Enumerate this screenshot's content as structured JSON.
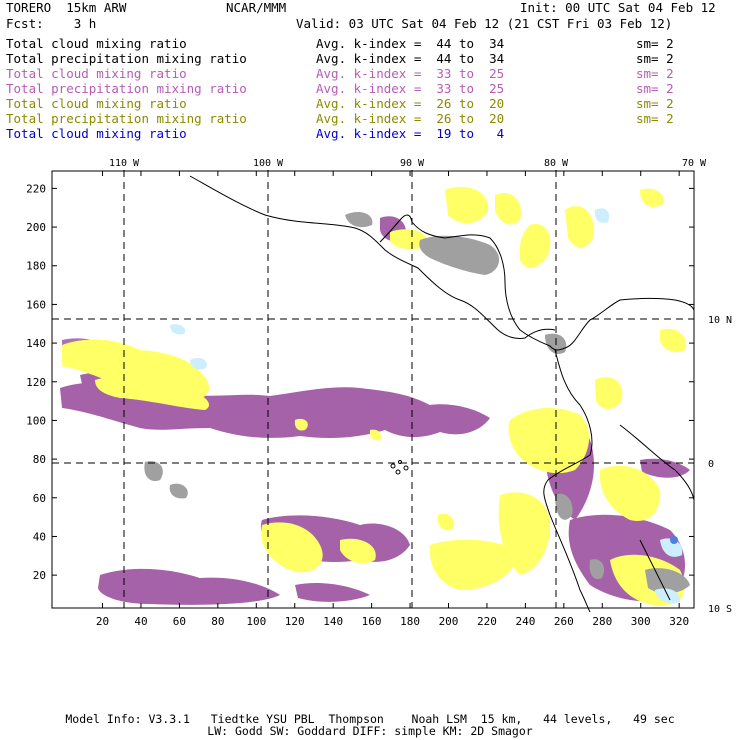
{
  "header": {
    "model": "TORERO  15km ARW",
    "org": "NCAR/MMM",
    "init": "Init: 00 UTC Sat 04 Feb 12",
    "fcst": "Fcst:    3 h",
    "valid": "Valid: 03 UTC Sat 04 Feb 12 (21 CST Fri 03 Feb 12)"
  },
  "legend": [
    {
      "name": "Total cloud mixing ratio",
      "kindex": "Avg. k-index =  44 to  34",
      "sm": "sm= 2",
      "color": "#000000"
    },
    {
      "name": "Total precipitation mixing ratio",
      "kindex": "Avg. k-index =  44 to  34",
      "sm": "sm= 2",
      "color": "#000000"
    },
    {
      "name": "Total cloud mixing ratio",
      "kindex": "Avg. k-index =  33 to  25",
      "sm": "sm= 2",
      "color": "#b55db5"
    },
    {
      "name": "Total precipitation mixing ratio",
      "kindex": "Avg. k-index =  33 to  25",
      "sm": "sm= 2",
      "color": "#b55db5"
    },
    {
      "name": "Total cloud mixing ratio",
      "kindex": "Avg. k-index =  26 to  20",
      "sm": "sm= 2",
      "color": "#8b8b00"
    },
    {
      "name": "Total precipitation mixing ratio",
      "kindex": "Avg. k-index =  26 to  20",
      "sm": "sm= 2",
      "color": "#8b8b00"
    },
    {
      "name": "Total cloud mixing ratio",
      "kindex": "Avg. k-index =  19 to   4",
      "sm": "",
      "color": "#0000d0"
    }
  ],
  "map": {
    "lon_labels": [
      "110 W",
      "100 W",
      "90 W",
      "80 W",
      "70 W"
    ],
    "lat_labels": [
      "10 N",
      "0",
      "10 S"
    ],
    "x_ticks": [
      "20",
      "40",
      "60",
      "80",
      "100",
      "120",
      "140",
      "160",
      "180",
      "200",
      "220",
      "240",
      "260",
      "280",
      "300",
      "320"
    ],
    "y_ticks": [
      "20",
      "40",
      "60",
      "80",
      "100",
      "120",
      "140",
      "160",
      "180",
      "200",
      "220"
    ],
    "colors": {
      "purple": "#a562a8",
      "yellow": "#ffff66",
      "gray": "#a0a0a0",
      "lightblue": "#cceeff",
      "blue": "#4f7fe0"
    }
  },
  "footer": {
    "line1": "Model Info: V3.3.1   Tiedtke YSU PBL  Thompson    Noah LSM  15 km,   44 levels,   49 sec",
    "line2": "LW: Godd SW: Goddard DIFF: simple KM: 2D Smagor"
  }
}
